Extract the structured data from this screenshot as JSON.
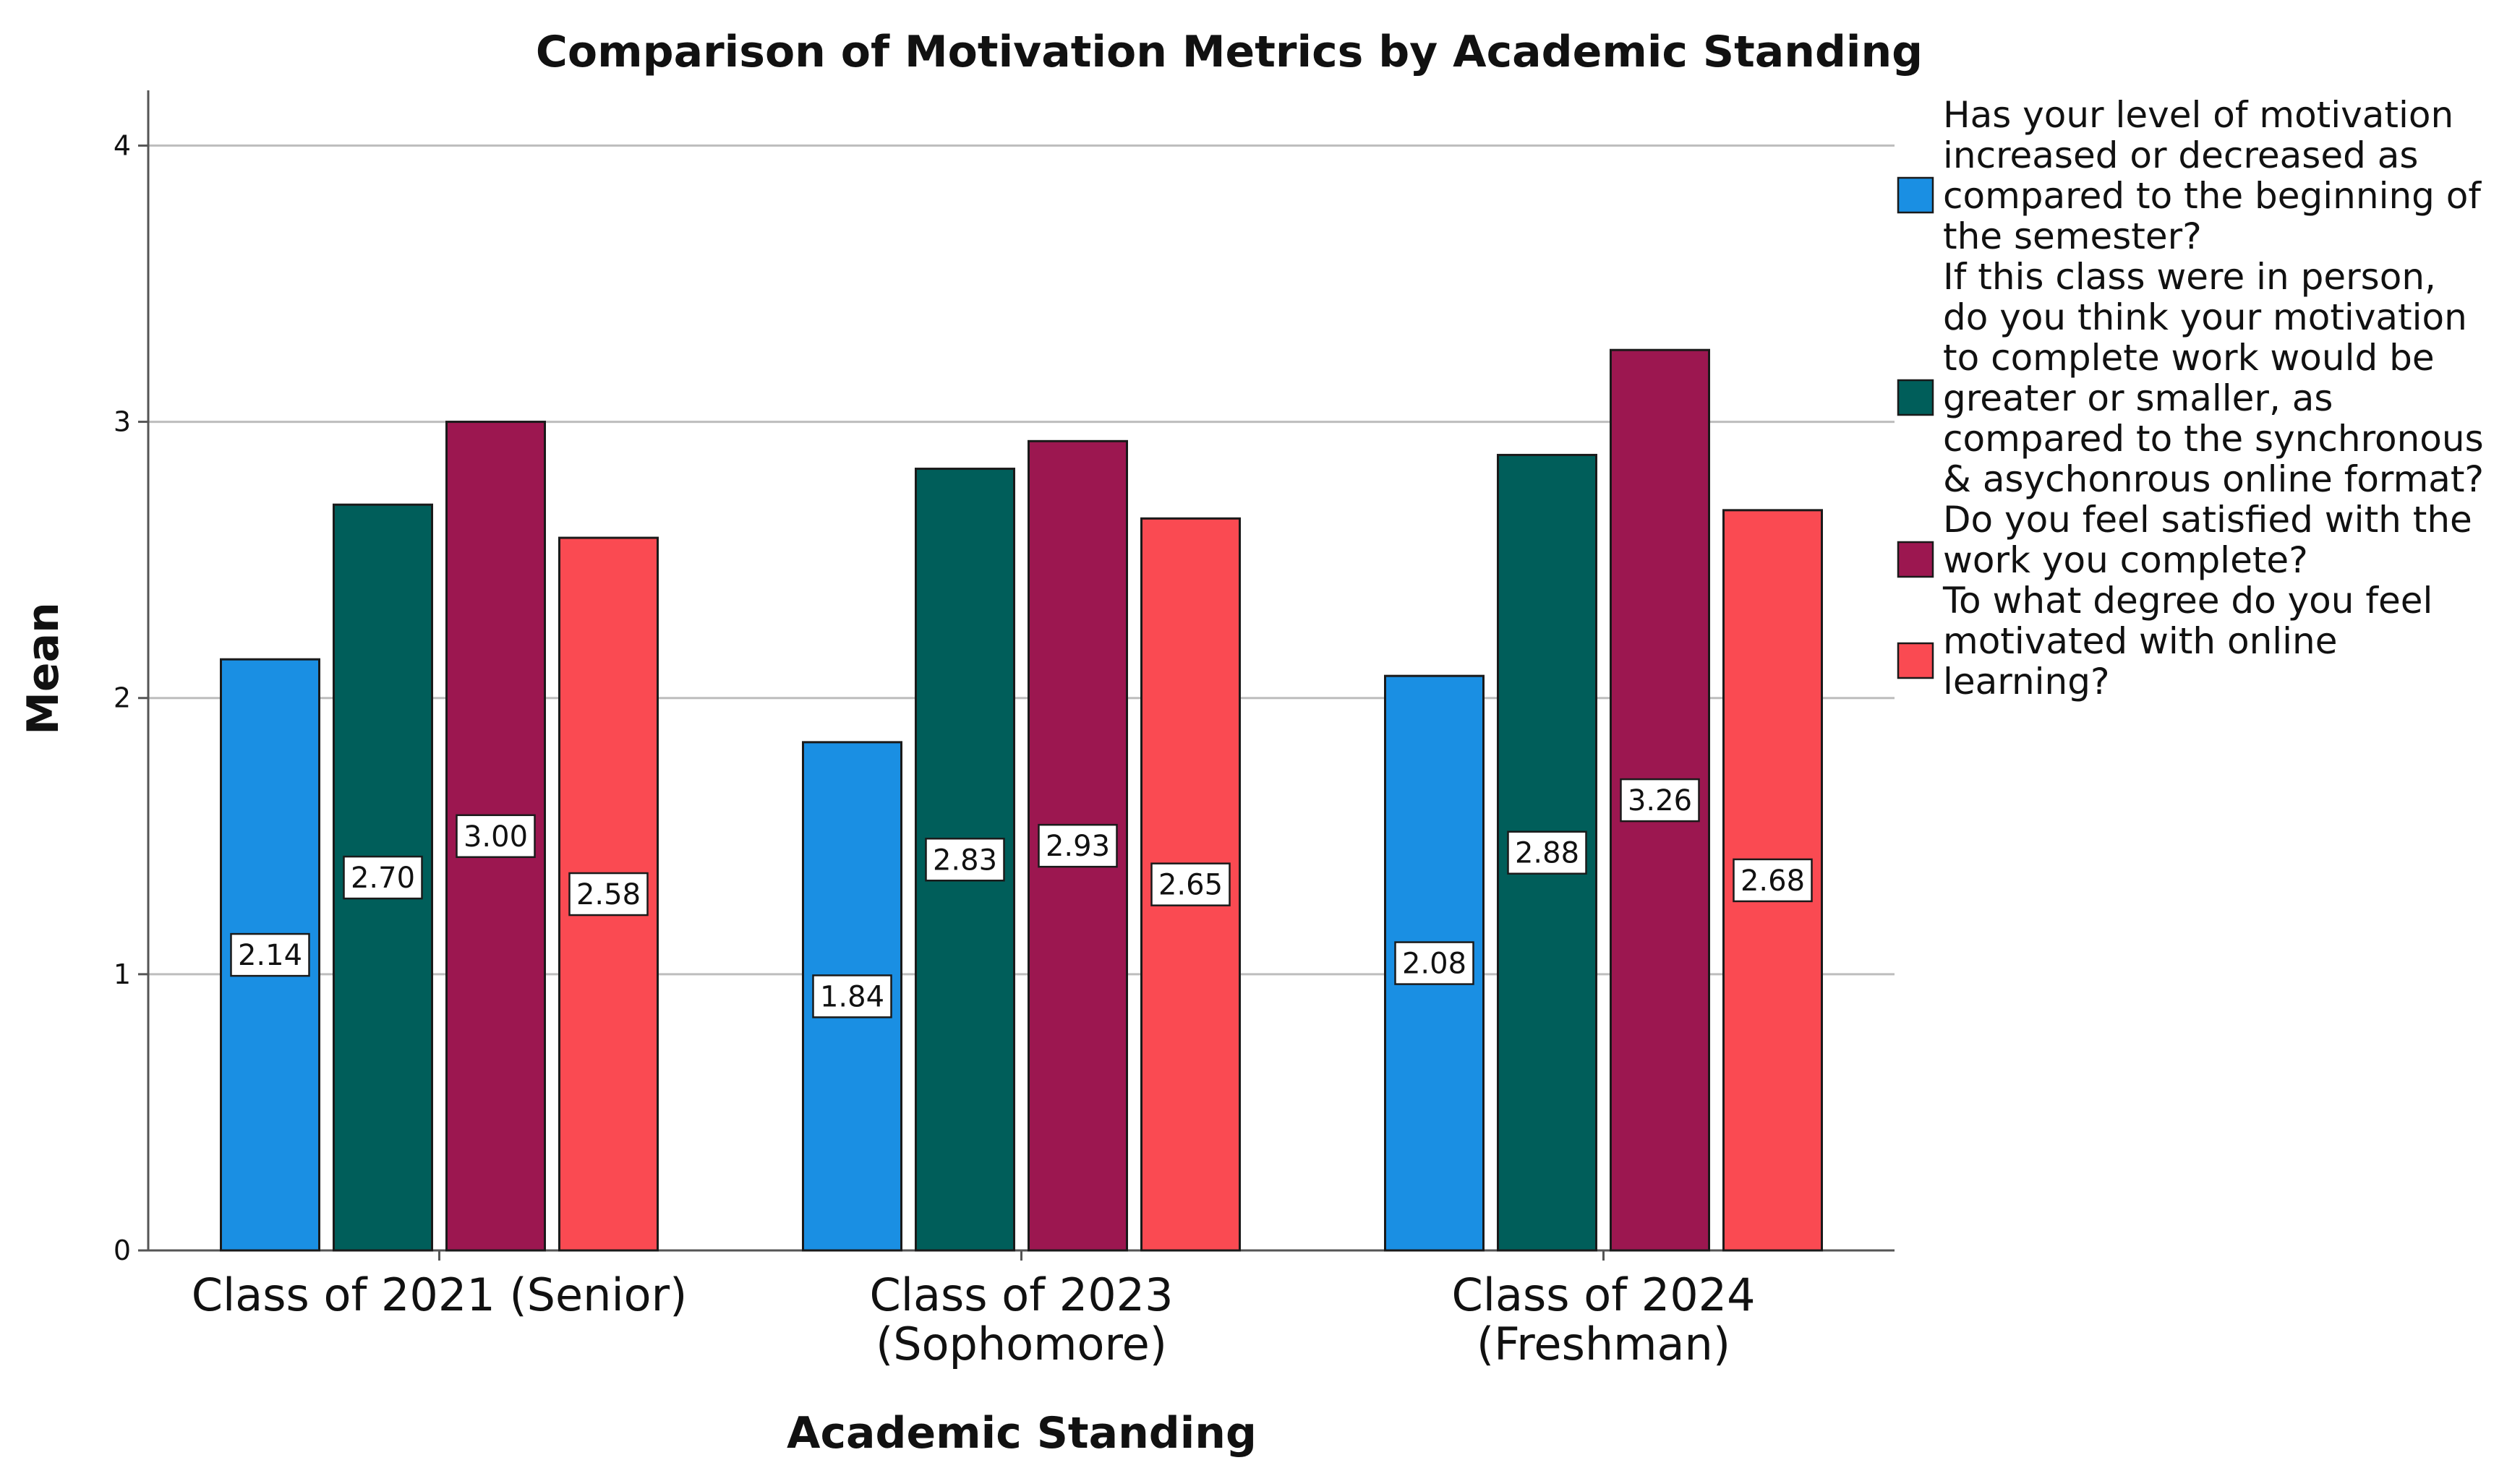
{
  "chart_data": {
    "type": "bar",
    "title": "Comparison of Motivation Metrics by Academic Standing",
    "xlabel": "Academic Standing",
    "ylabel": "Mean",
    "ylim": [
      0,
      4.2
    ],
    "yticks": [
      "0",
      "1",
      "2",
      "3",
      "4"
    ],
    "grid": true,
    "legend_position": "right",
    "categories": [
      [
        "Class of 2021 (Senior)"
      ],
      [
        "Class of 2023",
        "(Sophomore)"
      ],
      [
        "Class of 2024",
        "(Freshman)"
      ]
    ],
    "series": [
      {
        "name": "Has your level of motivation increased or decreased as compared to the beginning of the semester?",
        "legend_lines": [
          "Has your level of motivation",
          "increased or decreased as",
          "compared to the beginning of",
          "the semester?"
        ],
        "color": "#1a8fe3",
        "values": [
          2.14,
          1.84,
          2.08
        ],
        "labels": [
          "2.14",
          "1.84",
          "2.08"
        ]
      },
      {
        "name": "If this class were in person, do you think your motivation to complete work would be greater or smaller, as compared to the synchronous & asychonrous online format?",
        "legend_lines": [
          "If this class were in person,",
          "do you think your motivation",
          "to complete work would be",
          "greater or smaller, as",
          "compared to the synchronous",
          "& asychonrous online format?"
        ],
        "color": "#005e5a",
        "values": [
          2.7,
          2.83,
          2.88
        ],
        "labels": [
          "2.70",
          "2.83",
          "2.88"
        ]
      },
      {
        "name": "Do you feel satisfied with the work you complete?",
        "legend_lines": [
          "Do you feel satisfied with the",
          "work you complete?"
        ],
        "color": "#9c1750",
        "values": [
          3.0,
          2.93,
          3.26
        ],
        "labels": [
          "3.00",
          "2.93",
          "3.26"
        ]
      },
      {
        "name": "To what degree do you feel motivated with online learning?",
        "legend_lines": [
          "To what degree do you feel",
          "motivated with online",
          "learning?"
        ],
        "color": "#fa4a52",
        "values": [
          2.58,
          2.65,
          2.68
        ],
        "labels": [
          "2.58",
          "2.65",
          "2.68"
        ]
      }
    ]
  }
}
